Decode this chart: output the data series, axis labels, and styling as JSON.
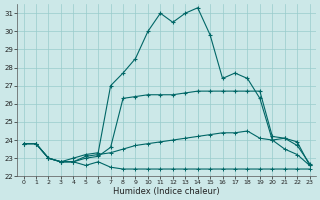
{
  "xlabel": "Humidex (Indice chaleur)",
  "x": [
    0,
    1,
    2,
    3,
    4,
    5,
    6,
    7,
    8,
    9,
    10,
    11,
    12,
    13,
    14,
    15,
    16,
    17,
    18,
    19,
    20,
    21,
    22,
    23
  ],
  "line_high": [
    23.8,
    23.8,
    23.0,
    22.8,
    23.0,
    23.2,
    23.3,
    27.0,
    27.7,
    28.5,
    30.0,
    31.0,
    30.5,
    31.0,
    31.3,
    29.8,
    27.4,
    27.7,
    27.4,
    26.3,
    24.0,
    24.1,
    23.9,
    22.6
  ],
  "line_mid": [
    23.8,
    23.8,
    23.0,
    22.8,
    22.8,
    23.0,
    23.1,
    23.6,
    26.3,
    26.4,
    26.5,
    26.5,
    26.5,
    26.6,
    26.7,
    26.7,
    26.7,
    26.7,
    26.7,
    26.7,
    24.2,
    24.1,
    23.7,
    22.7
  ],
  "line_upper_base": [
    23.8,
    23.8,
    23.0,
    22.8,
    22.8,
    23.1,
    23.2,
    23.3,
    23.5,
    23.7,
    23.8,
    23.9,
    24.0,
    24.1,
    24.2,
    24.3,
    24.4,
    24.4,
    24.5,
    24.1,
    24.0,
    23.5,
    23.2,
    22.6
  ],
  "line_lower_base": [
    23.8,
    23.8,
    23.0,
    22.8,
    22.8,
    22.6,
    22.8,
    22.5,
    22.4,
    22.4,
    22.4,
    22.4,
    22.4,
    22.4,
    22.4,
    22.4,
    22.4,
    22.4,
    22.4,
    22.4,
    22.4,
    22.4,
    22.4,
    22.4
  ],
  "bg_color": "#cce8e8",
  "grid_color": "#99cccc",
  "line_color": "#006666",
  "ylim": [
    22,
    31.5
  ],
  "xlim": [
    -0.5,
    23.5
  ],
  "yticks": [
    22,
    23,
    24,
    25,
    26,
    27,
    28,
    29,
    30,
    31
  ],
  "xticks": [
    0,
    1,
    2,
    3,
    4,
    5,
    6,
    7,
    8,
    9,
    10,
    11,
    12,
    13,
    14,
    15,
    16,
    17,
    18,
    19,
    20,
    21,
    22,
    23
  ]
}
